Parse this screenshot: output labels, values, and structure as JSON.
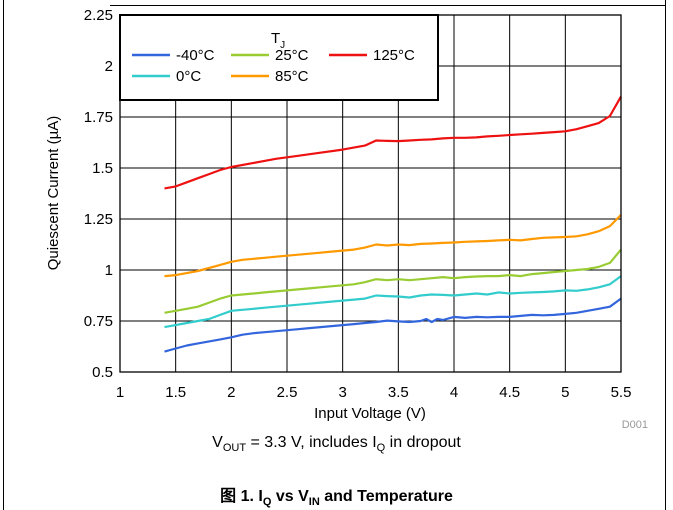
{
  "caption": {
    "prefix": "图 1. I",
    "sub1": "Q",
    "mid": " vs V",
    "sub2": "IN",
    "suffix": " and Temperature"
  },
  "condition": {
    "v": "V",
    "v_sub": "OUT",
    "text1": " = 3.3 V, includes I",
    "i_sub": "Q",
    "text2": " in dropout"
  },
  "chart_data": {
    "type": "line",
    "xlabel": "Input Voltage (V)",
    "ylabel": "Quiescent Current (µA)",
    "xlim": [
      1,
      5.5
    ],
    "ylim": [
      0.5,
      2.25
    ],
    "xticks": [
      "1",
      "1.5",
      "2",
      "2.5",
      "3",
      "3.5",
      "4",
      "4.5",
      "5",
      "5.5"
    ],
    "yticks": [
      "0.5",
      "0.75",
      "1",
      "1.25",
      "1.5",
      "1.75",
      "2",
      "2.25"
    ],
    "grid": true,
    "legend": {
      "title": "T",
      "title_sub": "J",
      "placement": "top-left"
    },
    "watermark": "D001",
    "series": [
      {
        "name": "-40°C",
        "color": "#3366dd",
        "x": [
          1.4,
          1.5,
          1.6,
          1.7,
          1.8,
          1.9,
          2.0,
          2.1,
          2.2,
          2.3,
          2.4,
          2.5,
          2.6,
          2.7,
          2.8,
          2.9,
          3.0,
          3.1,
          3.2,
          3.3,
          3.4,
          3.5,
          3.6,
          3.7,
          3.75,
          3.8,
          3.85,
          3.9,
          4.0,
          4.1,
          4.2,
          4.3,
          4.4,
          4.5,
          4.6,
          4.7,
          4.8,
          4.9,
          5.0,
          5.1,
          5.2,
          5.3,
          5.4,
          5.5
        ],
        "y": [
          0.6,
          0.615,
          0.63,
          0.64,
          0.65,
          0.66,
          0.67,
          0.683,
          0.69,
          0.695,
          0.7,
          0.705,
          0.71,
          0.715,
          0.72,
          0.725,
          0.73,
          0.735,
          0.74,
          0.745,
          0.752,
          0.748,
          0.745,
          0.75,
          0.76,
          0.745,
          0.76,
          0.755,
          0.77,
          0.765,
          0.77,
          0.768,
          0.77,
          0.77,
          0.775,
          0.78,
          0.778,
          0.78,
          0.785,
          0.79,
          0.8,
          0.81,
          0.82,
          0.86
        ]
      },
      {
        "name": "0°C",
        "color": "#33cccc",
        "x": [
          1.4,
          1.5,
          1.6,
          1.7,
          1.8,
          1.9,
          2.0,
          2.1,
          2.2,
          2.3,
          2.4,
          2.5,
          2.6,
          2.7,
          2.8,
          2.9,
          3.0,
          3.1,
          3.2,
          3.3,
          3.4,
          3.5,
          3.6,
          3.7,
          3.8,
          3.9,
          4.0,
          4.1,
          4.2,
          4.3,
          4.4,
          4.5,
          4.6,
          4.7,
          4.8,
          4.9,
          5.0,
          5.1,
          5.2,
          5.3,
          5.4,
          5.5
        ],
        "y": [
          0.72,
          0.73,
          0.74,
          0.75,
          0.76,
          0.78,
          0.8,
          0.805,
          0.81,
          0.815,
          0.82,
          0.825,
          0.83,
          0.835,
          0.84,
          0.845,
          0.85,
          0.855,
          0.86,
          0.875,
          0.872,
          0.87,
          0.865,
          0.875,
          0.88,
          0.878,
          0.875,
          0.88,
          0.885,
          0.88,
          0.89,
          0.885,
          0.888,
          0.89,
          0.892,
          0.895,
          0.9,
          0.898,
          0.905,
          0.915,
          0.93,
          0.97
        ]
      },
      {
        "name": "25°C",
        "color": "#99cc33",
        "x": [
          1.4,
          1.5,
          1.6,
          1.7,
          1.8,
          1.9,
          2.0,
          2.1,
          2.2,
          2.3,
          2.4,
          2.5,
          2.6,
          2.7,
          2.8,
          2.9,
          3.0,
          3.1,
          3.2,
          3.3,
          3.4,
          3.5,
          3.6,
          3.7,
          3.8,
          3.9,
          4.0,
          4.1,
          4.2,
          4.3,
          4.4,
          4.5,
          4.6,
          4.7,
          4.8,
          4.9,
          5.0,
          5.1,
          5.2,
          5.3,
          5.4,
          5.5
        ],
        "y": [
          0.79,
          0.8,
          0.81,
          0.82,
          0.84,
          0.86,
          0.875,
          0.88,
          0.885,
          0.89,
          0.895,
          0.9,
          0.905,
          0.91,
          0.915,
          0.92,
          0.925,
          0.93,
          0.94,
          0.955,
          0.95,
          0.955,
          0.95,
          0.955,
          0.96,
          0.965,
          0.96,
          0.965,
          0.968,
          0.97,
          0.97,
          0.975,
          0.97,
          0.98,
          0.985,
          0.99,
          0.995,
          1.0,
          1.005,
          1.015,
          1.035,
          1.1
        ]
      },
      {
        "name": "85°C",
        "color": "#ff9900",
        "x": [
          1.4,
          1.5,
          1.6,
          1.7,
          1.8,
          1.9,
          2.0,
          2.1,
          2.2,
          2.3,
          2.4,
          2.5,
          2.6,
          2.7,
          2.8,
          2.9,
          3.0,
          3.1,
          3.2,
          3.3,
          3.4,
          3.5,
          3.6,
          3.7,
          3.8,
          3.9,
          4.0,
          4.1,
          4.2,
          4.3,
          4.4,
          4.5,
          4.6,
          4.7,
          4.8,
          4.9,
          5.0,
          5.1,
          5.2,
          5.3,
          5.4,
          5.5
        ],
        "y": [
          0.97,
          0.975,
          0.985,
          0.995,
          1.01,
          1.025,
          1.04,
          1.05,
          1.055,
          1.06,
          1.065,
          1.07,
          1.075,
          1.08,
          1.085,
          1.09,
          1.095,
          1.1,
          1.11,
          1.125,
          1.12,
          1.125,
          1.122,
          1.128,
          1.13,
          1.133,
          1.135,
          1.138,
          1.14,
          1.142,
          1.145,
          1.148,
          1.145,
          1.152,
          1.158,
          1.16,
          1.162,
          1.165,
          1.175,
          1.19,
          1.215,
          1.27
        ]
      },
      {
        "name": "125°C",
        "color": "#ee1111",
        "x": [
          1.4,
          1.5,
          1.6,
          1.7,
          1.8,
          1.9,
          2.0,
          2.2,
          2.4,
          2.6,
          2.8,
          3.0,
          3.1,
          3.2,
          3.3,
          3.4,
          3.5,
          3.6,
          3.7,
          3.8,
          3.9,
          4.0,
          4.1,
          4.2,
          4.3,
          4.4,
          4.5,
          4.6,
          4.7,
          4.8,
          4.9,
          5.0,
          5.1,
          5.2,
          5.3,
          5.4,
          5.5
        ],
        "y": [
          1.4,
          1.41,
          1.43,
          1.45,
          1.47,
          1.49,
          1.505,
          1.525,
          1.545,
          1.56,
          1.575,
          1.59,
          1.6,
          1.61,
          1.635,
          1.633,
          1.632,
          1.635,
          1.638,
          1.64,
          1.645,
          1.648,
          1.648,
          1.65,
          1.655,
          1.658,
          1.662,
          1.665,
          1.668,
          1.672,
          1.676,
          1.68,
          1.69,
          1.705,
          1.72,
          1.755,
          1.85
        ]
      }
    ]
  }
}
